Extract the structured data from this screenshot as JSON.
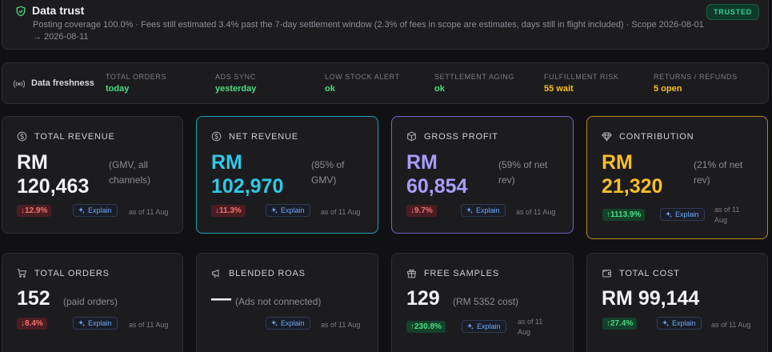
{
  "trust": {
    "title": "Data trust",
    "badge": "TRUSTED",
    "description": "Posting coverage 100.0% · Fees still estimated 3.4% past the 7-day settlement window (2.3% of fees in scope are estimates, days still in flight included) · Scope 2026-08-01 → 2026-08-11"
  },
  "freshness": {
    "title": "Data freshness",
    "items": [
      {
        "label": "TOTAL ORDERS",
        "value": "today",
        "color": "#4ade80"
      },
      {
        "label": "ADS SYNC",
        "value": "yesterday",
        "color": "#4ade80"
      },
      {
        "label": "LOW STOCK ALERT",
        "value": "ok",
        "color": "#4ade80"
      },
      {
        "label": "SETTLEMENT AGING",
        "value": "ok",
        "color": "#4ade80"
      },
      {
        "label": "FULFILLMENT RISK",
        "value": "55 wait",
        "color": "#fbbf24"
      },
      {
        "label": "RETURNS / REFUNDS",
        "value": "5 open",
        "color": "#fbbf24"
      }
    ]
  },
  "cards": {
    "total_revenue": {
      "title": "TOTAL REVENUE",
      "value_line1": "RM",
      "value_line2": "120,463",
      "note": "(GMV, all channels)",
      "delta": "↓12.9%",
      "explain": "Explain",
      "asof": "as of 11 Aug"
    },
    "net_revenue": {
      "title": "NET REVENUE",
      "value_line1": "RM",
      "value_line2": "102,970",
      "note": "(85% of GMV)",
      "delta": "↓11.3%",
      "explain": "Explain",
      "asof": "as of 11 Aug"
    },
    "gross_profit": {
      "title": "GROSS PROFIT",
      "value_line1": "RM",
      "value_line2": "60,854",
      "note": "(59% of net rev)",
      "delta": "↓9.7%",
      "explain": "Explain",
      "asof": "as of 11 Aug"
    },
    "contribution": {
      "title": "CONTRIBUTION",
      "value_line1": "RM",
      "value_line2": "21,320",
      "note": "(21% of net rev)",
      "delta": "↑1113.9%",
      "explain": "Explain",
      "asof": "as of 11 Aug"
    },
    "total_orders": {
      "title": "TOTAL ORDERS",
      "value": "152",
      "note": "(paid orders)",
      "delta": "↓8.4%",
      "explain": "Explain",
      "asof": "as of 11 Aug"
    },
    "blended_roas": {
      "title": "BLENDED ROAS",
      "value": "—",
      "note": "(Ads not connected)",
      "explain": "Explain",
      "asof": "as of 11 Aug"
    },
    "free_samples": {
      "title": "FREE SAMPLES",
      "value": "129",
      "note": "(RM 5352 cost)",
      "delta": "↑230.8%",
      "explain": "Explain",
      "asof": "as of 11 Aug"
    },
    "total_cost": {
      "title": "TOTAL COST",
      "value": "RM 99,144",
      "delta": "↑27.4%",
      "explain": "Explain",
      "asof": "as of 11 Aug"
    }
  },
  "colors": {
    "white_value": "#f2f2f4",
    "cyan": "#2ec9e6",
    "purple": "#a99cff",
    "amber": "#fbbf24",
    "accent_border_net": "#1e9fb8",
    "accent_border_profit": "#6f64c9",
    "accent_border_contribution": "#b98a1a"
  }
}
